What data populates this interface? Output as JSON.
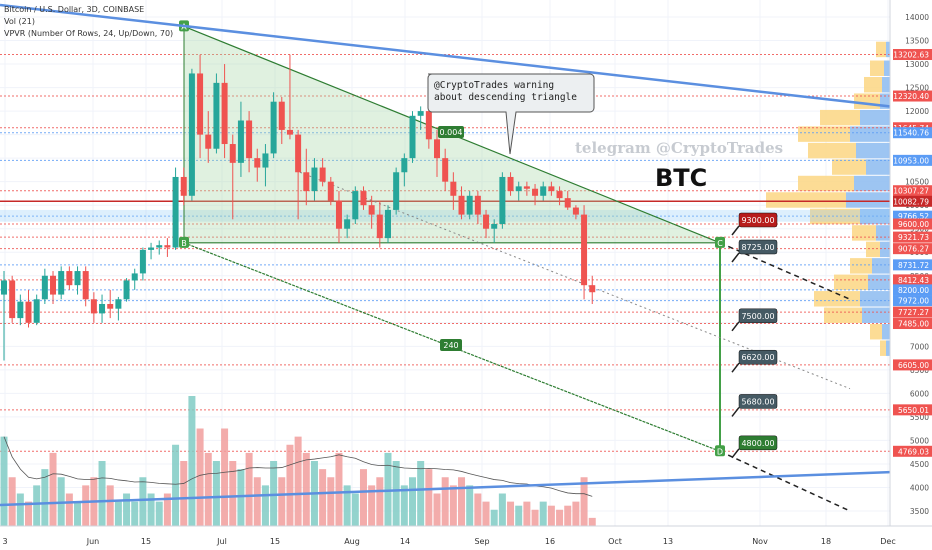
{
  "chart_data": {
    "type": "candlestick",
    "legend": {
      "line1": "Bitcoin / U.S. Dollar, 3D, COINBASE",
      "line2": "Vol (21)",
      "line3": "VPVR (Number Of Rows, 24, Up/Down, 70)"
    },
    "x_ticks": [
      "3",
      "Jun",
      "15",
      "Jul",
      "15",
      "Aug",
      "14",
      "Sep",
      "16",
      "Oct",
      "13",
      "Nov",
      "18",
      "Dec"
    ],
    "y_ticks": [
      14000,
      13500,
      13000,
      12500,
      12000,
      11500,
      11000,
      10500,
      10000,
      9500,
      9000,
      8500,
      8000,
      7500,
      7000,
      6500,
      6000,
      5500,
      5000,
      4500,
      4000,
      3500
    ],
    "price_labels": [
      {
        "value": 13202.63,
        "label": "13202.63",
        "color": "#ef5350"
      },
      {
        "value": 12320.4,
        "label": "12320.40",
        "color": "#ef5350"
      },
      {
        "value": 11645.74,
        "label": "11645.74",
        "color": "#ef5350"
      },
      {
        "value": 11540.76,
        "label": "11540.76",
        "color": "#5b9cf5"
      },
      {
        "value": 10953.0,
        "label": "10953.00",
        "color": "#5b9cf5"
      },
      {
        "value": 10307.27,
        "label": "10307.27",
        "color": "#ef5350"
      },
      {
        "value": 10082.79,
        "label": "10082.79",
        "color": "#c62828"
      },
      {
        "value": 9766.52,
        "label": "9766.52",
        "color": "#5b9cf5"
      },
      {
        "value": 9600.0,
        "label": "9600.00",
        "color": "#ef5350"
      },
      {
        "value": 9321.73,
        "label": "9321.73",
        "color": "#ef5350"
      },
      {
        "value": 9076.27,
        "label": "9076.27",
        "color": "#ef5350"
      },
      {
        "value": 8731.72,
        "label": "8731.72",
        "color": "#5b9cf5"
      },
      {
        "value": 8412.43,
        "label": "8412.43",
        "color": "#ef5350"
      },
      {
        "value": 8200.0,
        "label": "8200.00",
        "color": "#5b9cf5"
      },
      {
        "value": 7972.0,
        "label": "7972.00",
        "color": "#5b9cf5"
      },
      {
        "value": 7727.27,
        "label": "7727.27",
        "color": "#ef5350"
      },
      {
        "value": 7485.0,
        "label": "7485.00",
        "color": "#ef5350"
      },
      {
        "value": 6605.0,
        "label": "6605.00",
        "color": "#ef5350"
      },
      {
        "value": 5650.01,
        "label": "5650.01",
        "color": "#ef5350"
      },
      {
        "value": 4769.03,
        "label": "4769.03",
        "color": "#ef5350"
      }
    ],
    "callouts": [
      {
        "label": "9300.00",
        "color": "#b71c1c"
      },
      {
        "label": "8725.00",
        "color": "#455a64"
      },
      {
        "label": "7500.00",
        "color": "#455a64"
      },
      {
        "label": "6620.00",
        "color": "#455a64"
      },
      {
        "label": "5680.00",
        "color": "#455a64"
      },
      {
        "label": "4800.00",
        "color": "#2e7d32"
      }
    ],
    "points": [
      "A",
      "B",
      "C",
      "D"
    ],
    "triangle_labels": [
      "0.004",
      "240"
    ],
    "annotation": "@CryptoTrades warning\nabout descending triangle",
    "watermark": "telegram @CryptoTrades",
    "symbol_text": "BTC",
    "candles": [
      {
        "o": 8100,
        "h": 8600,
        "l": 6700,
        "c": 8400
      },
      {
        "o": 8400,
        "h": 8500,
        "l": 7500,
        "c": 7600
      },
      {
        "o": 7600,
        "h": 8100,
        "l": 7450,
        "c": 7950
      },
      {
        "o": 7950,
        "h": 8200,
        "l": 7400,
        "c": 7500
      },
      {
        "o": 7500,
        "h": 8100,
        "l": 7450,
        "c": 8000
      },
      {
        "o": 8000,
        "h": 8650,
        "l": 7900,
        "c": 8500
      },
      {
        "o": 8500,
        "h": 8600,
        "l": 7900,
        "c": 8100
      },
      {
        "o": 8100,
        "h": 8700,
        "l": 8000,
        "c": 8600
      },
      {
        "o": 8600,
        "h": 8700,
        "l": 8200,
        "c": 8300
      },
      {
        "o": 8300,
        "h": 8700,
        "l": 8100,
        "c": 8600
      },
      {
        "o": 8600,
        "h": 8700,
        "l": 7850,
        "c": 8000
      },
      {
        "o": 8000,
        "h": 8150,
        "l": 7500,
        "c": 7700
      },
      {
        "o": 7700,
        "h": 8100,
        "l": 7500,
        "c": 7900
      },
      {
        "o": 7900,
        "h": 8200,
        "l": 7600,
        "c": 7800
      },
      {
        "o": 7800,
        "h": 8050,
        "l": 7550,
        "c": 8000
      },
      {
        "o": 8000,
        "h": 8450,
        "l": 7950,
        "c": 8400
      },
      {
        "o": 8400,
        "h": 8650,
        "l": 8200,
        "c": 8550
      },
      {
        "o": 8550,
        "h": 9100,
        "l": 8400,
        "c": 9050
      },
      {
        "o": 9050,
        "h": 9200,
        "l": 8850,
        "c": 9100
      },
      {
        "o": 9100,
        "h": 9250,
        "l": 8950,
        "c": 9150
      },
      {
        "o": 9150,
        "h": 9300,
        "l": 8900,
        "c": 9100
      },
      {
        "o": 9100,
        "h": 10800,
        "l": 9050,
        "c": 10600
      },
      {
        "o": 10600,
        "h": 10800,
        "l": 10000,
        "c": 10200
      },
      {
        "o": 10200,
        "h": 12900,
        "l": 10100,
        "c": 12800
      },
      {
        "o": 12800,
        "h": 13200,
        "l": 11000,
        "c": 11500
      },
      {
        "o": 11500,
        "h": 12000,
        "l": 10900,
        "c": 11200
      },
      {
        "o": 11200,
        "h": 12800,
        "l": 11100,
        "c": 12600
      },
      {
        "o": 12600,
        "h": 13000,
        "l": 11000,
        "c": 11300
      },
      {
        "o": 11300,
        "h": 11500,
        "l": 9700,
        "c": 10900
      },
      {
        "o": 10900,
        "h": 12200,
        "l": 10600,
        "c": 11800
      },
      {
        "o": 11800,
        "h": 12000,
        "l": 10700,
        "c": 11000
      },
      {
        "o": 11000,
        "h": 11200,
        "l": 10500,
        "c": 10800
      },
      {
        "o": 10800,
        "h": 11300,
        "l": 10400,
        "c": 11100
      },
      {
        "o": 11100,
        "h": 12400,
        "l": 11000,
        "c": 12200
      },
      {
        "o": 12200,
        "h": 12300,
        "l": 11300,
        "c": 11600
      },
      {
        "o": 11600,
        "h": 13200,
        "l": 11400,
        "c": 11500
      },
      {
        "o": 11500,
        "h": 11600,
        "l": 9700,
        "c": 10700
      },
      {
        "o": 10700,
        "h": 11200,
        "l": 10000,
        "c": 10300
      },
      {
        "o": 10300,
        "h": 11000,
        "l": 10100,
        "c": 10800
      },
      {
        "o": 10800,
        "h": 11000,
        "l": 10400,
        "c": 10500
      },
      {
        "o": 10500,
        "h": 10600,
        "l": 10000,
        "c": 10100
      },
      {
        "o": 10100,
        "h": 10300,
        "l": 9200,
        "c": 9500
      },
      {
        "o": 9500,
        "h": 9800,
        "l": 9300,
        "c": 9700
      },
      {
        "o": 9700,
        "h": 10400,
        "l": 9600,
        "c": 10300
      },
      {
        "o": 10300,
        "h": 10400,
        "l": 9900,
        "c": 10000
      },
      {
        "o": 10000,
        "h": 10200,
        "l": 9500,
        "c": 9800
      },
      {
        "o": 9800,
        "h": 10100,
        "l": 9100,
        "c": 9300
      },
      {
        "o": 9300,
        "h": 10000,
        "l": 9200,
        "c": 9900
      },
      {
        "o": 9900,
        "h": 10800,
        "l": 9800,
        "c": 10700
      },
      {
        "o": 10700,
        "h": 11100,
        "l": 10400,
        "c": 11000
      },
      {
        "o": 11000,
        "h": 12000,
        "l": 10900,
        "c": 11900
      },
      {
        "o": 11900,
        "h": 12100,
        "l": 11600,
        "c": 12000
      },
      {
        "o": 12000,
        "h": 12100,
        "l": 11200,
        "c": 11400
      },
      {
        "o": 11400,
        "h": 11600,
        "l": 10600,
        "c": 11000
      },
      {
        "o": 11000,
        "h": 11200,
        "l": 10300,
        "c": 10500
      },
      {
        "o": 10500,
        "h": 10700,
        "l": 9900,
        "c": 10200
      },
      {
        "o": 10200,
        "h": 10400,
        "l": 9700,
        "c": 9800
      },
      {
        "o": 9800,
        "h": 10300,
        "l": 9700,
        "c": 10200
      },
      {
        "o": 10200,
        "h": 10300,
        "l": 9600,
        "c": 9800
      },
      {
        "o": 9800,
        "h": 9900,
        "l": 9300,
        "c": 9500
      },
      {
        "o": 9500,
        "h": 9700,
        "l": 9200,
        "c": 9600
      },
      {
        "o": 9600,
        "h": 10700,
        "l": 9500,
        "c": 10600
      },
      {
        "o": 10600,
        "h": 10700,
        "l": 10200,
        "c": 10300
      },
      {
        "o": 10300,
        "h": 10500,
        "l": 10100,
        "c": 10400
      },
      {
        "o": 10400,
        "h": 10500,
        "l": 10200,
        "c": 10350
      },
      {
        "o": 10350,
        "h": 10450,
        "l": 10000,
        "c": 10200
      },
      {
        "o": 10200,
        "h": 10500,
        "l": 10100,
        "c": 10400
      },
      {
        "o": 10400,
        "h": 10500,
        "l": 10200,
        "c": 10300
      },
      {
        "o": 10300,
        "h": 10400,
        "l": 10000,
        "c": 10150
      },
      {
        "o": 10150,
        "h": 10300,
        "l": 9900,
        "c": 9950
      },
      {
        "o": 9950,
        "h": 10000,
        "l": 9700,
        "c": 9800
      },
      {
        "o": 9800,
        "h": 10000,
        "l": 8000,
        "c": 8300
      },
      {
        "o": 8300,
        "h": 8500,
        "l": 7900,
        "c": 8150
      }
    ],
    "volumes": [
      1.1,
      0.6,
      0.4,
      0.3,
      0.5,
      0.7,
      0.9,
      0.6,
      0.4,
      0.3,
      0.5,
      0.6,
      0.8,
      0.5,
      0.3,
      0.4,
      0.3,
      0.6,
      0.4,
      0.3,
      0.4,
      1.0,
      0.8,
      1.6,
      1.2,
      0.9,
      0.8,
      1.2,
      0.8,
      0.7,
      0.9,
      0.6,
      0.5,
      0.8,
      0.6,
      1.0,
      1.1,
      0.9,
      0.8,
      0.7,
      0.6,
      0.9,
      0.5,
      0.4,
      0.7,
      0.5,
      0.6,
      0.9,
      0.8,
      0.5,
      0.6,
      0.8,
      0.7,
      0.4,
      0.6,
      0.5,
      0.6,
      0.5,
      0.4,
      0.3,
      0.2,
      0.4,
      0.3,
      0.25,
      0.3,
      0.2,
      0.3,
      0.25,
      0.2,
      0.25,
      0.3,
      0.6,
      0.1
    ]
  }
}
